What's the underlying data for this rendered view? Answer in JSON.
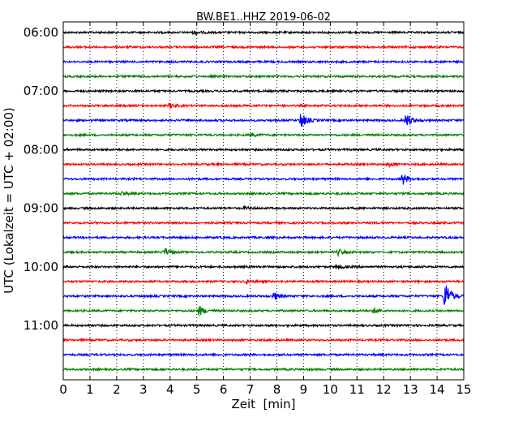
{
  "chart_data": {
    "type": "line",
    "title": "BW.BE1..HHZ 2019-06-02",
    "xlabel": "Zeit  [min]",
    "ylabel": "UTC (Lokalzeit = UTC + 02:00)",
    "xlim": [
      0,
      15
    ],
    "x_ticks": [
      "0",
      "1",
      "2",
      "3",
      "4",
      "5",
      "6",
      "7",
      "8",
      "9",
      "10",
      "11",
      "12",
      "13",
      "14",
      "15"
    ],
    "y_tick_labels": [
      "06:00",
      "07:00",
      "08:00",
      "09:00",
      "10:00",
      "11:00"
    ],
    "grid": "vertical dotted",
    "trace_colors": [
      "#000000",
      "#ff0000",
      "#0000ff",
      "#008000"
    ],
    "traces": [
      {
        "start": "06:00",
        "events": [
          {
            "t": 4.9,
            "amp": 2
          }
        ]
      },
      {
        "start": "06:15",
        "events": []
      },
      {
        "start": "06:30",
        "events": []
      },
      {
        "start": "06:45",
        "events": []
      },
      {
        "start": "07:00",
        "events": []
      },
      {
        "start": "07:15",
        "events": [
          {
            "t": 4.0,
            "amp": 3
          }
        ]
      },
      {
        "start": "07:30",
        "events": [
          {
            "t": 8.9,
            "amp": 10
          },
          {
            "t": 12.85,
            "amp": 9
          }
        ]
      },
      {
        "start": "07:45",
        "events": [
          {
            "t": 7.05,
            "amp": 2
          }
        ]
      },
      {
        "start": "08:00",
        "events": []
      },
      {
        "start": "08:15",
        "events": [
          {
            "t": 12.2,
            "amp": 2
          }
        ]
      },
      {
        "start": "08:30",
        "events": [
          {
            "t": 12.7,
            "amp": 8
          }
        ]
      },
      {
        "start": "08:45",
        "events": [
          {
            "t": 2.2,
            "amp": 2
          }
        ]
      },
      {
        "start": "09:00",
        "events": [
          {
            "t": 6.8,
            "amp": 2
          }
        ]
      },
      {
        "start": "09:15",
        "events": []
      },
      {
        "start": "09:30",
        "events": []
      },
      {
        "start": "09:45",
        "events": [
          {
            "t": 3.8,
            "amp": 5
          },
          {
            "t": 10.3,
            "amp": 4
          }
        ]
      },
      {
        "start": "10:00",
        "events": [
          {
            "t": 10.25,
            "amp": 3
          }
        ]
      },
      {
        "start": "10:15",
        "events": [
          {
            "t": 6.85,
            "amp": 3
          }
        ]
      },
      {
        "start": "10:30",
        "events": [
          {
            "t": 7.9,
            "amp": 5
          },
          {
            "t": 14.3,
            "amp": 20
          }
        ]
      },
      {
        "start": "10:45",
        "events": [
          {
            "t": 5.1,
            "amp": 6
          },
          {
            "t": 11.6,
            "amp": 3
          }
        ]
      },
      {
        "start": "11:00",
        "events": []
      },
      {
        "start": "11:15",
        "events": []
      },
      {
        "start": "11:30",
        "events": []
      },
      {
        "start": "11:45",
        "events": []
      }
    ]
  }
}
